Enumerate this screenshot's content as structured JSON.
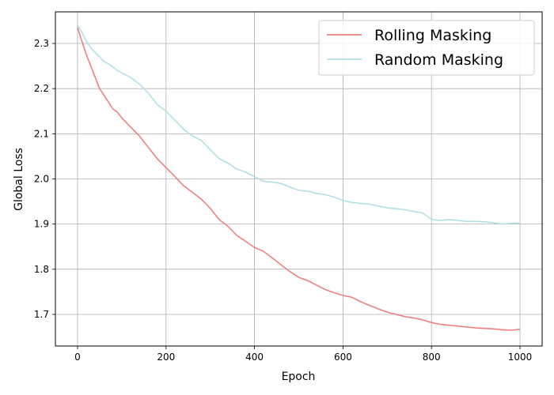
{
  "chart_data": {
    "type": "line",
    "xlabel": "Epoch",
    "ylabel": "Global Loss",
    "xlim": [
      -50,
      1050
    ],
    "ylim": [
      1.63,
      2.37
    ],
    "xticks": [
      0,
      200,
      400,
      600,
      800,
      1000
    ],
    "yticks": [
      1.7,
      1.8,
      1.9,
      2.0,
      2.1,
      2.2,
      2.3
    ],
    "xtick_labels": [
      "0",
      "200",
      "400",
      "600",
      "800",
      "1000"
    ],
    "ytick_labels": [
      "1.7",
      "1.8",
      "1.9",
      "2.0",
      "2.1",
      "2.2",
      "2.3"
    ],
    "grid": true,
    "legend_position": "top-right",
    "series": [
      {
        "name": "Rolling Masking",
        "color": "#f08080",
        "x": [
          0,
          10,
          20,
          30,
          40,
          50,
          60,
          70,
          80,
          90,
          100,
          120,
          140,
          160,
          180,
          200,
          220,
          240,
          260,
          280,
          300,
          320,
          340,
          360,
          380,
          400,
          420,
          440,
          460,
          480,
          500,
          520,
          540,
          560,
          580,
          600,
          620,
          640,
          660,
          680,
          700,
          720,
          740,
          760,
          780,
          800,
          820,
          840,
          860,
          880,
          900,
          920,
          940,
          960,
          980,
          1000
        ],
        "values": [
          2.335,
          2.305,
          2.275,
          2.25,
          2.225,
          2.2,
          2.185,
          2.17,
          2.155,
          2.148,
          2.135,
          2.115,
          2.095,
          2.07,
          2.045,
          2.025,
          2.005,
          1.985,
          1.97,
          1.955,
          1.935,
          1.91,
          1.895,
          1.875,
          1.862,
          1.848,
          1.84,
          1.825,
          1.81,
          1.795,
          1.782,
          1.775,
          1.765,
          1.755,
          1.748,
          1.742,
          1.738,
          1.728,
          1.72,
          1.712,
          1.705,
          1.7,
          1.695,
          1.692,
          1.688,
          1.682,
          1.678,
          1.676,
          1.674,
          1.672,
          1.67,
          1.669,
          1.668,
          1.666,
          1.665,
          1.667
        ]
      },
      {
        "name": "Random Masking",
        "color": "#b0e0e6",
        "x": [
          0,
          10,
          20,
          30,
          40,
          50,
          60,
          70,
          80,
          90,
          100,
          120,
          140,
          160,
          180,
          200,
          220,
          240,
          260,
          280,
          300,
          320,
          340,
          360,
          380,
          400,
          420,
          440,
          460,
          480,
          500,
          520,
          540,
          560,
          580,
          600,
          620,
          640,
          660,
          680,
          700,
          720,
          740,
          760,
          780,
          800,
          820,
          840,
          860,
          880,
          900,
          920,
          940,
          960,
          980,
          1000
        ],
        "values": [
          2.34,
          2.325,
          2.305,
          2.29,
          2.28,
          2.27,
          2.26,
          2.255,
          2.248,
          2.24,
          2.235,
          2.225,
          2.21,
          2.19,
          2.165,
          2.15,
          2.13,
          2.11,
          2.095,
          2.085,
          2.065,
          2.045,
          2.035,
          2.022,
          2.015,
          2.005,
          1.995,
          1.993,
          1.99,
          1.982,
          1.975,
          1.973,
          1.968,
          1.965,
          1.96,
          1.952,
          1.948,
          1.946,
          1.944,
          1.94,
          1.936,
          1.934,
          1.932,
          1.928,
          1.925,
          1.91,
          1.908,
          1.91,
          1.908,
          1.906,
          1.906,
          1.905,
          1.903,
          1.9,
          1.902,
          1.902
        ]
      }
    ]
  }
}
